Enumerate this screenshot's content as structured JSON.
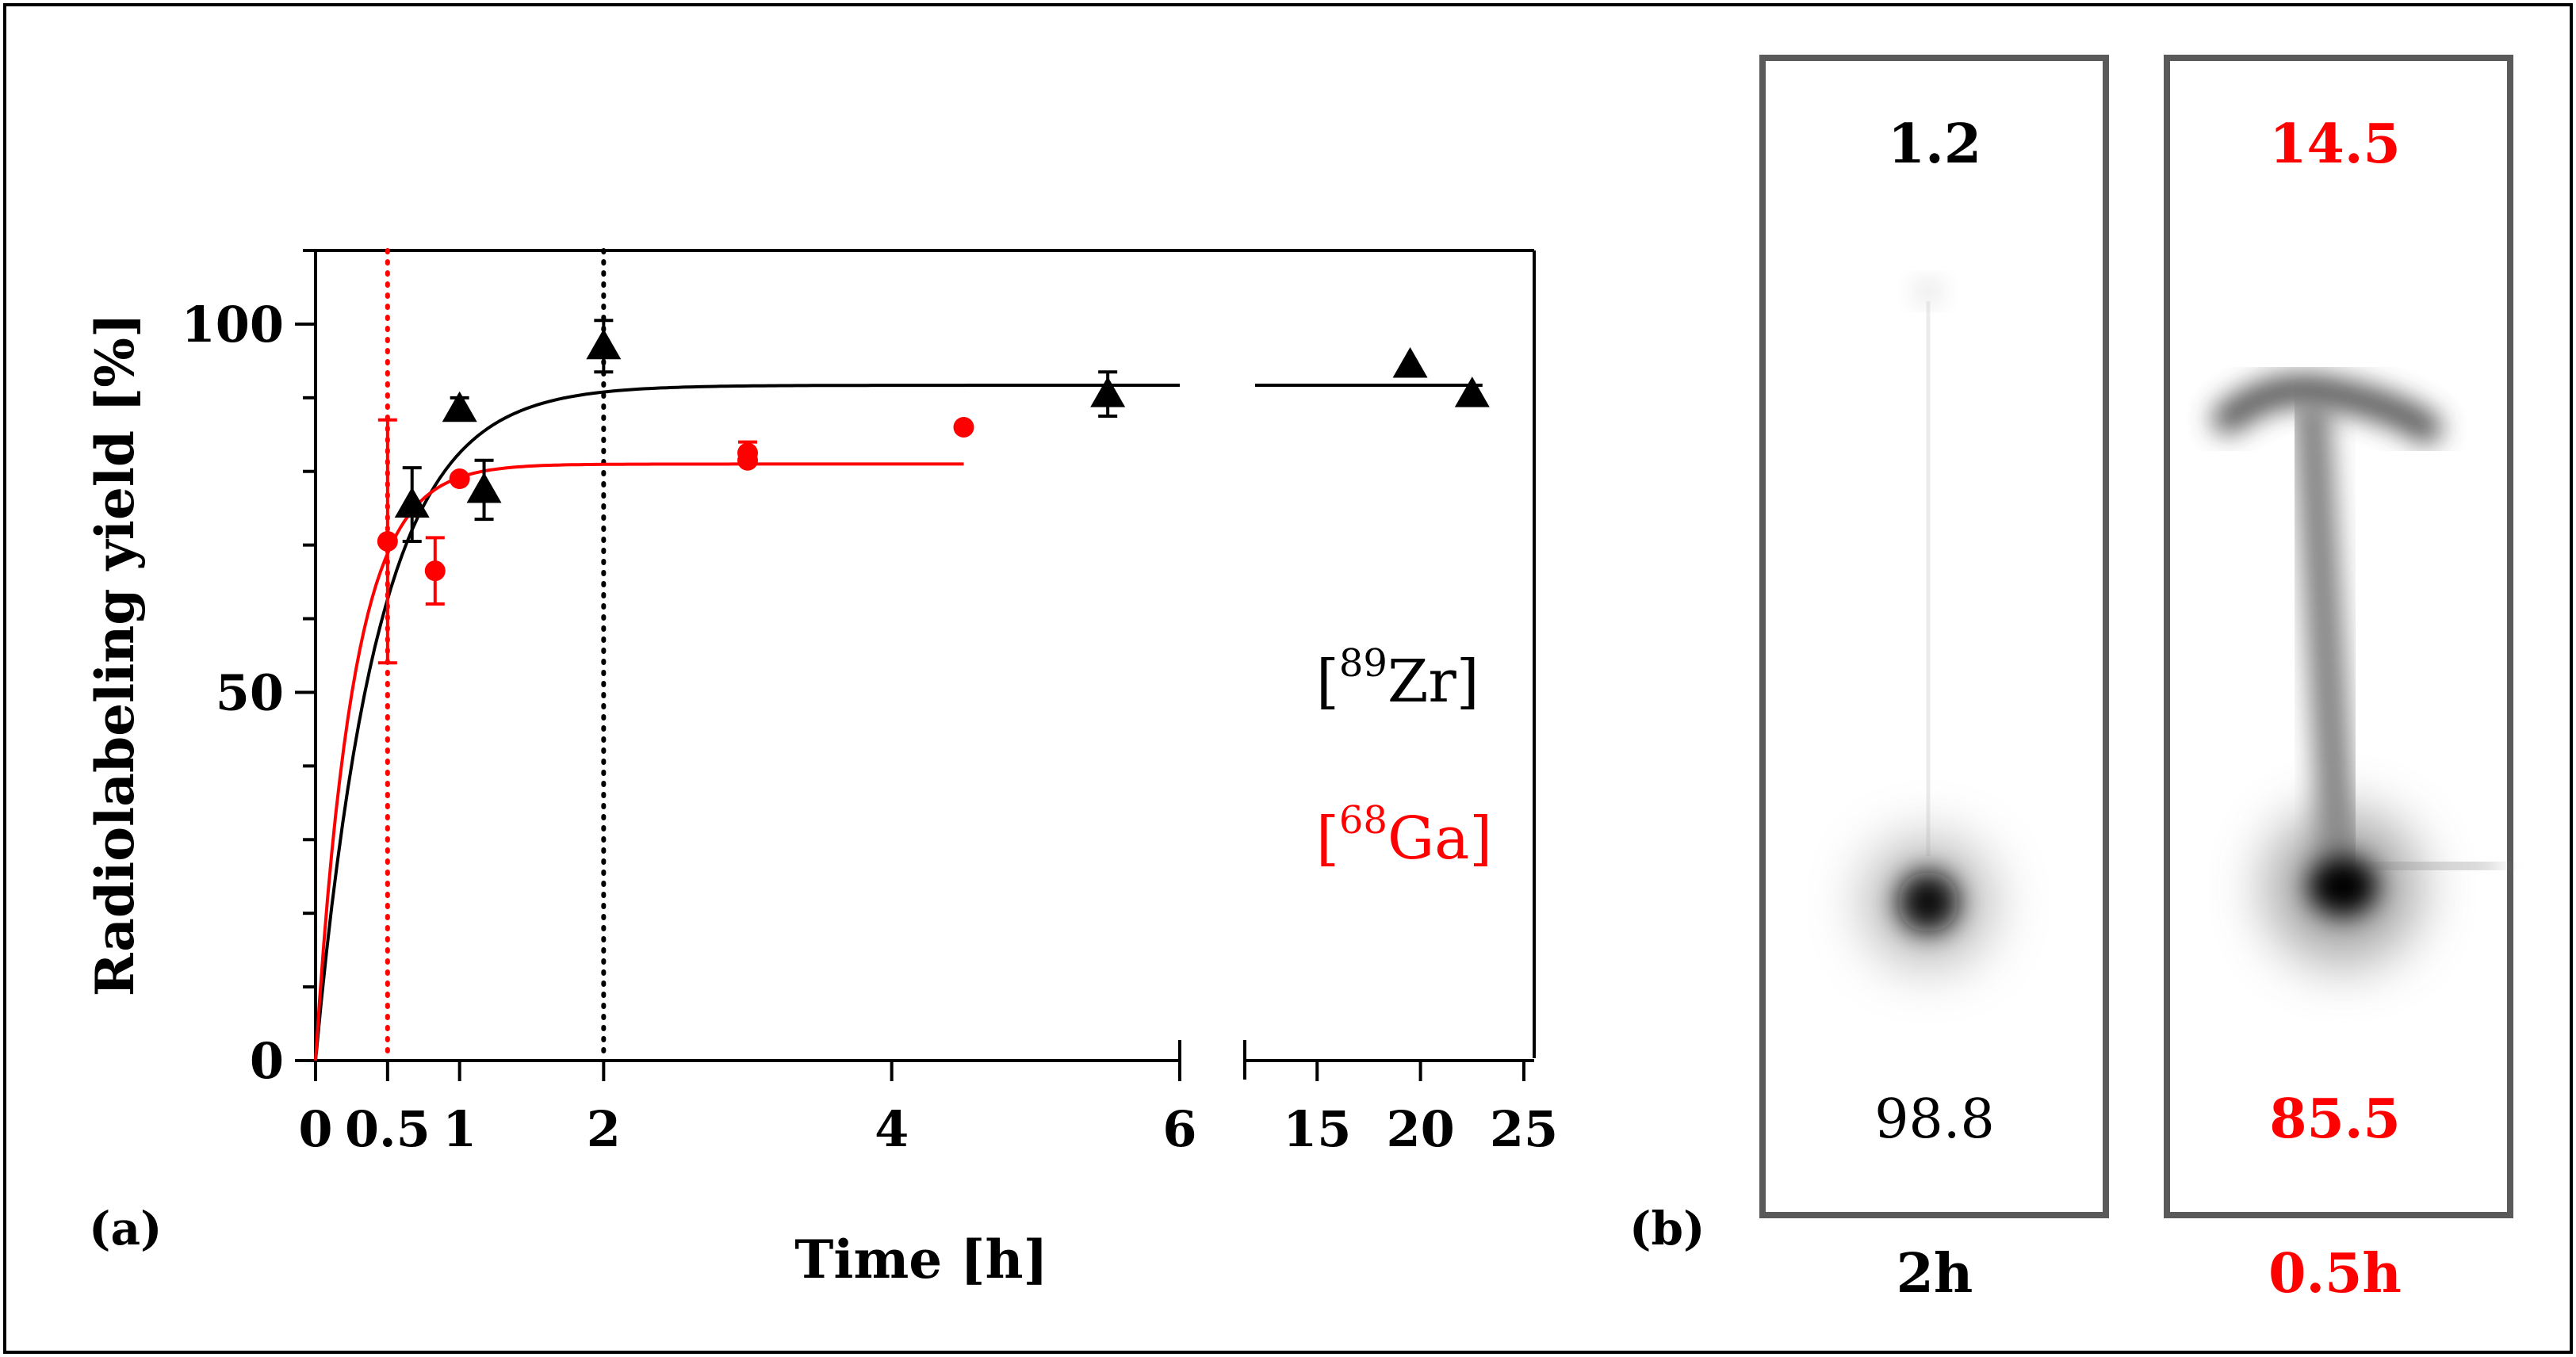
{
  "panel_a_label": "(a)",
  "panel_b_label": "(b)",
  "colors": {
    "zr": "#000000",
    "ga": "#ff0000",
    "frame": "#000000",
    "strip_border": "#5a5a5a"
  },
  "chart_data": {
    "type": "scatter",
    "title": "",
    "xlabel": "Time [h]",
    "ylabel": "Radiolabeling yield [%]",
    "ylim": [
      0,
      110
    ],
    "yticks": [
      0,
      50,
      100
    ],
    "y_minor_step": 10,
    "x_segments": [
      {
        "range": [
          0,
          6
        ],
        "ticks": [
          0,
          0.5,
          1,
          2,
          4,
          6
        ],
        "tick_labels": [
          "0",
          "0.5",
          "1",
          "2",
          "4",
          "6"
        ]
      },
      {
        "range": [
          11.5,
          25.5
        ],
        "ticks": [
          15,
          20,
          25
        ],
        "tick_labels": [
          "15",
          "20",
          "25"
        ]
      }
    ],
    "vlines": [
      {
        "x": 0.5,
        "color": "#ff0000",
        "style": "dotted"
      },
      {
        "x": 2,
        "color": "#000000",
        "style": "dotted"
      }
    ],
    "legend": [
      {
        "prefix": "[",
        "sup": "89",
        "element": "Zr",
        "suffix": "]",
        "color": "#000000"
      },
      {
        "prefix": "[",
        "sup": "68",
        "element": "Ga",
        "suffix": "]",
        "color": "#ff0000"
      }
    ],
    "series": [
      {
        "name": "[89Zr]",
        "color": "#000000",
        "marker": "triangle",
        "points": [
          {
            "x": 0.67,
            "y": 75.5,
            "err": 5
          },
          {
            "x": 1.0,
            "y": 88.5,
            "err": 1.5
          },
          {
            "x": 1.17,
            "y": 77.5,
            "err": 4
          },
          {
            "x": 2.0,
            "y": 97,
            "err": 3.5
          },
          {
            "x": 5.5,
            "y": 90.5,
            "err": 3
          },
          {
            "x": 19.5,
            "y": 94.5,
            "err": 0
          },
          {
            "x": 22.5,
            "y": 90.5,
            "err": 0
          }
        ],
        "fit": {
          "plateau": 91.7,
          "k": 2.3,
          "x_max": 23
        }
      },
      {
        "name": "[68Ga]",
        "color": "#ff0000",
        "marker": "circle",
        "points": [
          {
            "x": 0.5,
            "y": 70.5,
            "err": 16.5
          },
          {
            "x": 0.83,
            "y": 66.5,
            "err": 4.5
          },
          {
            "x": 1.0,
            "y": 79,
            "err": 0
          },
          {
            "x": 3.0,
            "y": 82.5,
            "err": 1.5
          },
          {
            "x": 3.0,
            "y": 81.5,
            "err": 0
          },
          {
            "x": 4.5,
            "y": 86,
            "err": 0
          }
        ],
        "fit": {
          "plateau": 81,
          "k": 3.8,
          "x_max": 4.5
        }
      }
    ]
  },
  "strips": [
    {
      "top_value": "1.2",
      "bottom_value": "98.8",
      "caption": "2h",
      "color": "#000000"
    },
    {
      "top_value": "14.5",
      "bottom_value": "85.5",
      "caption": "0.5h",
      "color": "#ff0000"
    }
  ]
}
